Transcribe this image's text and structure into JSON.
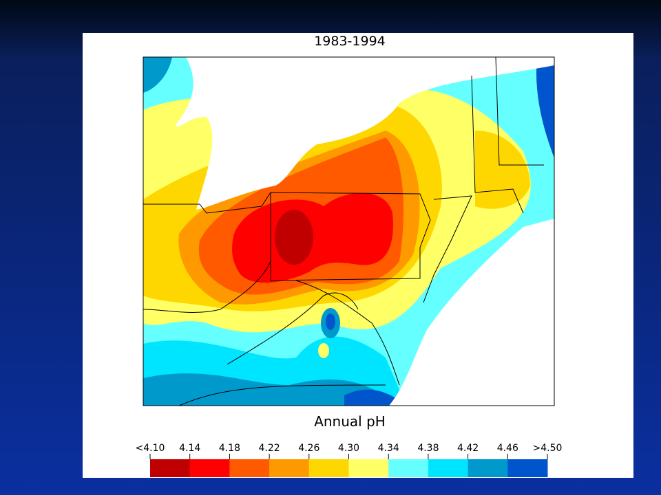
{
  "map": {
    "title": "1983-1994",
    "caption": "Annual pH",
    "legend": {
      "labels": [
        "<4.10",
        "4.14",
        "4.18",
        "4.22",
        "4.26",
        "4.30",
        "4.34",
        "4.38",
        "4.42",
        "4.46",
        ">4.50"
      ],
      "colors": [
        "#c00000",
        "#ff0000",
        "#ff5a00",
        "#ff9900",
        "#ffd700",
        "#ffff66",
        "#66ffff",
        "#00e5ff",
        "#0099cc",
        "#0055cc"
      ]
    }
  }
}
